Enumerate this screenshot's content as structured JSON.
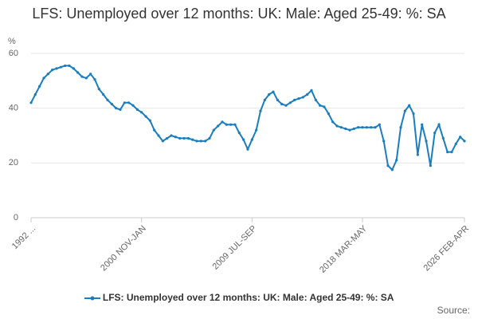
{
  "chart_data": {
    "type": "line",
    "title": "LFS: Unemployed over 12 months: UK: Male: Aged 25-49: %: SA",
    "y_label": "%",
    "source_label": "Source:",
    "categories": [
      "1992 ...",
      null,
      null,
      null,
      null,
      null,
      null,
      null,
      null,
      null,
      null,
      null,
      null,
      null,
      null,
      null,
      null,
      null,
      null,
      null,
      null,
      null,
      null,
      null,
      null,
      null,
      "2000 NOV-JAN",
      null,
      null,
      null,
      null,
      null,
      null,
      null,
      null,
      null,
      null,
      null,
      null,
      null,
      null,
      null,
      null,
      null,
      null,
      null,
      null,
      null,
      null,
      null,
      null,
      null,
      "2009 JUL-SEP",
      null,
      null,
      null,
      null,
      null,
      null,
      null,
      null,
      null,
      null,
      null,
      null,
      null,
      null,
      null,
      null,
      null,
      null,
      null,
      null,
      null,
      null,
      null,
      null,
      null,
      "2018 MAR-MAY",
      null,
      null,
      null,
      null,
      null,
      null,
      null,
      null,
      null,
      null,
      null,
      null,
      null,
      null,
      null,
      null,
      null,
      null,
      null,
      null,
      null,
      null,
      null,
      "2026 FEB-APR"
    ],
    "series": [
      {
        "name": "LFS: Unemployed over 12 months: UK: Male: Aged 25-49: %: SA",
        "color": "#1a7dc0",
        "values": [
          42,
          45,
          48,
          51,
          52.5,
          54,
          54.5,
          55,
          55.5,
          55.5,
          54.5,
          53,
          51.5,
          51,
          52.5,
          50.5,
          47,
          45,
          43,
          41.5,
          40,
          39.5,
          42,
          42,
          41,
          39.5,
          38.5,
          37,
          35.5,
          32,
          30,
          28,
          29,
          30,
          29.5,
          29,
          29,
          29,
          28.5,
          28,
          28,
          28,
          29,
          32,
          33.5,
          35,
          34,
          34,
          34,
          31,
          28.5,
          25,
          28.5,
          32,
          39,
          43,
          45,
          46,
          43,
          41.5,
          41,
          42,
          43,
          43.5,
          44,
          45,
          46.5,
          43,
          41,
          40.5,
          38,
          35,
          33.5,
          33,
          32.5,
          32,
          32.5,
          33,
          33,
          33,
          33,
          33,
          34,
          28,
          19,
          17.5,
          21,
          33,
          39,
          41,
          38,
          23,
          34,
          28,
          19,
          31,
          34,
          29,
          24,
          24,
          27,
          29.5,
          28
        ]
      }
    ],
    "ylim": [
      0,
      60
    ],
    "yticks": [
      0,
      20,
      40,
      60
    ],
    "grid": true
  }
}
